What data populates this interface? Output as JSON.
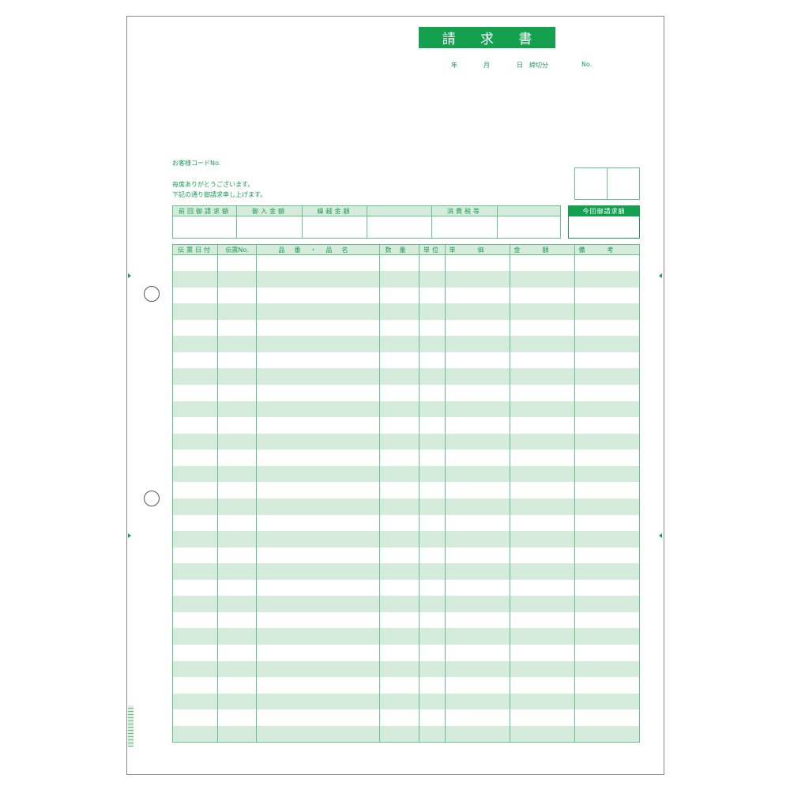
{
  "title": [
    "請",
    "求",
    "書"
  ],
  "date_line": {
    "year": "年",
    "month": "月",
    "day": "日",
    "closing": "締切分",
    "number": "No."
  },
  "customer_code_label": "お客様コードNo.",
  "greeting": [
    "毎度ありがとうございます。",
    "下記の通り御請求申し上げます。"
  ],
  "summary": {
    "headers": [
      "前回御請求額",
      "御入金額",
      "繰越金額",
      "",
      "消費税等",
      ""
    ],
    "current_label": "今回御請求額"
  },
  "items": {
    "headers": [
      "伝票日付",
      "伝票No.",
      "品番・品名",
      "数量",
      "単位",
      "単価",
      "金額",
      "備考"
    ]
  },
  "colors": {
    "accent": "#15a050",
    "band": "#d5ebdb",
    "line": "#6cbf8f"
  }
}
